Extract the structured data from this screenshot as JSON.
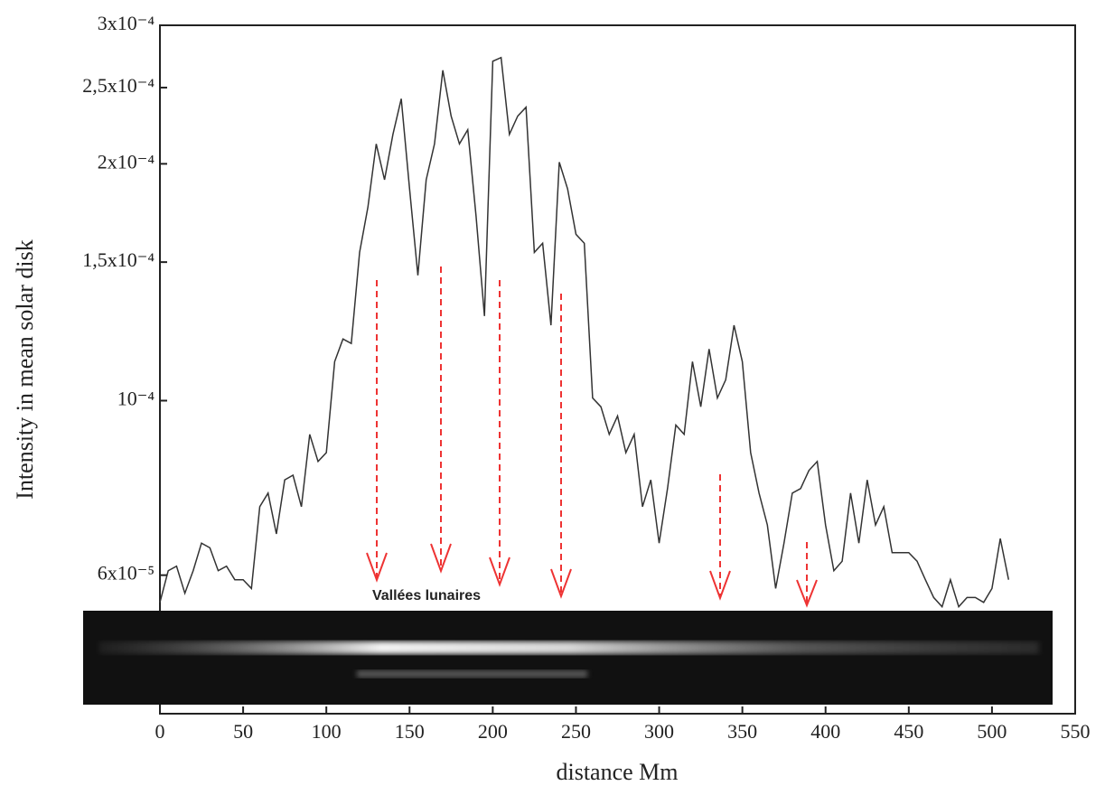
{
  "chart_data": {
    "type": "line",
    "ylabel": "Intensity in mean solar disk",
    "xlabel": "distance Mm",
    "annotation": "Vallées lunaires",
    "log_y": true,
    "color": "#333333",
    "xlim": [
      0,
      550
    ],
    "xticks": [
      0,
      50,
      100,
      150,
      200,
      250,
      300,
      350,
      400,
      450,
      500,
      550
    ],
    "ylim": [
      4e-05,
      0.0003
    ],
    "yticks": [
      {
        "value": 6e-05,
        "label": "6x10⁻⁵"
      },
      {
        "value": 0.0001,
        "label": "10⁻⁴"
      },
      {
        "value": 0.00015,
        "label": "1,5x10⁻⁴"
      },
      {
        "value": 0.0002,
        "label": "2x10⁻⁴"
      },
      {
        "value": 0.00025,
        "label": "2,5x10⁻⁴"
      },
      {
        "value": 0.0003,
        "label": "3x10⁻⁴"
      }
    ],
    "x": [
      0,
      5,
      10,
      15,
      20,
      25,
      30,
      35,
      40,
      45,
      50,
      55,
      60,
      65,
      70,
      75,
      80,
      85,
      90,
      95,
      100,
      105,
      110,
      115,
      120,
      125,
      130,
      135,
      140,
      145,
      150,
      155,
      160,
      165,
      170,
      175,
      180,
      185,
      190,
      195,
      200,
      205,
      210,
      215,
      220,
      225,
      230,
      235,
      240,
      245,
      250,
      255,
      260,
      265,
      270,
      275,
      280,
      285,
      290,
      295,
      300,
      305,
      310,
      315,
      320,
      325,
      330,
      335,
      340,
      345,
      350,
      355,
      360,
      365,
      370,
      375,
      380,
      385,
      390,
      395,
      400,
      405,
      410,
      415,
      420,
      425,
      430,
      435,
      440,
      445,
      450,
      455,
      460,
      465,
      470,
      475,
      480,
      485,
      490,
      495,
      500,
      505,
      510
    ],
    "values": [
      5.54e-05,
      6.08e-05,
      6.16e-05,
      5.69e-05,
      6.08e-05,
      6.59e-05,
      6.5e-05,
      6.08e-05,
      6.16e-05,
      5.92e-05,
      5.92e-05,
      5.77e-05,
      7.33e-05,
      7.63e-05,
      6.77e-05,
      7.93e-05,
      8.04e-05,
      7.33e-05,
      9.06e-05,
      8.37e-05,
      8.59e-05,
      0.0001121,
      0.0001198,
      0.0001182,
      0.0001543,
      0.0001762,
      0.000212,
      0.0001909,
      0.000218,
      0.000242,
      0.0001859,
      0.0001443,
      0.0001909,
      0.000212,
      0.000263,
      0.00023,
      0.000212,
      0.000221,
      0.0001716,
      0.0001281,
      0.00027,
      0.000273,
      0.000218,
      0.00023,
      0.000236,
      0.0001543,
      0.0001585,
      0.0001247,
      0.000201,
      0.0001859,
      0.0001627,
      0.0001585,
      0.0001008,
      9.82e-05,
      9.06e-05,
      9.56e-05,
      8.59e-05,
      9.06e-05,
      7.33e-05,
      7.93e-05,
      6.59e-05,
      7.73e-05,
      9.31e-05,
      9.06e-05,
      0.0001121,
      9.82e-05,
      0.0001163,
      0.0001008,
      0.0001063,
      0.0001247,
      0.0001121,
      8.59e-05,
      7.63e-05,
      6.95e-05,
      5.77e-05,
      6.59e-05,
      7.63e-05,
      7.73e-05,
      8.15e-05,
      8.37e-05,
      6.95e-05,
      6.08e-05,
      6.25e-05,
      7.63e-05,
      6.59e-05,
      7.93e-05,
      6.95e-05,
      7.33e-05,
      6.41e-05,
      6.41e-05,
      6.41e-05,
      6.25e-05,
      5.92e-05,
      5.62e-05,
      5.47e-05,
      5.92e-05,
      5.47e-05,
      5.62e-05,
      5.62e-05,
      5.54e-05,
      5.77e-05,
      6.68e-05,
      5.92e-05
    ]
  }
}
